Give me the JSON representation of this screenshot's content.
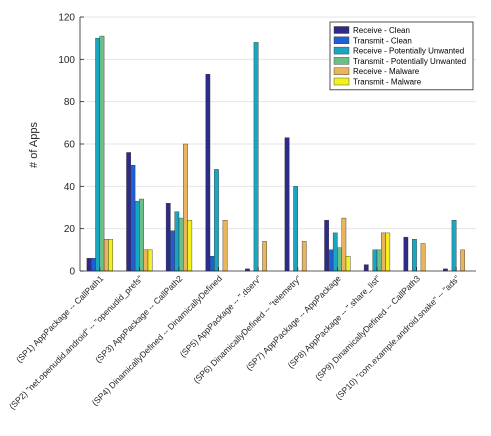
{
  "chart_data": {
    "type": "bar",
    "ylabel": "# of Apps",
    "ylim": [
      0,
      120
    ],
    "yticks": [
      0,
      20,
      40,
      60,
      80,
      100,
      120
    ],
    "grid": true,
    "legend_position": "top-right",
    "categories": [
      "(SP1) AppPackage -- CallPath1",
      "(SP2) \"net.openudid.android\" -- \"openudid_prefs\"",
      "(SP3) AppPackage -- CallPath2",
      "(SP4) DinamicallyDefined -- DinamicallyDefined",
      "(SP5) AppPackage -- \".dserv\"",
      "(SP6) DinamicallyDefined -- \"telemetry\"",
      "(SP7) AppPackage -- AppPackage",
      "(SP8) AppPackage -- \".share_list\"",
      "(SP9) DinamicallyDefined -- CallPath3",
      "(SP10) \"com.example.android.snake\" -- \"ads\""
    ],
    "series": [
      {
        "name": "Receive - Clean",
        "color": "#2e2a8a",
        "values": [
          6,
          56,
          32,
          93,
          1,
          63,
          24,
          3,
          16,
          1
        ]
      },
      {
        "name": "Transmit - Clean",
        "color": "#1f5fd6",
        "values": [
          6,
          50,
          19,
          7,
          0,
          0,
          10,
          0,
          0,
          0
        ]
      },
      {
        "name": "Receive - Potentially Unwanted",
        "color": "#19a6c0",
        "values": [
          110,
          33,
          28,
          48,
          108,
          40,
          18,
          10,
          15,
          24
        ]
      },
      {
        "name": "Transmit - Potentially Unwanted",
        "color": "#6dbf8a",
        "values": [
          111,
          34,
          25,
          0,
          0,
          0,
          11,
          10,
          0,
          0
        ]
      },
      {
        "name": "Receive - Malware",
        "color": "#e9b45c",
        "values": [
          15,
          10,
          60,
          24,
          14,
          14,
          25,
          18,
          13,
          10
        ]
      },
      {
        "name": "Transmit - Malware",
        "color": "#f3f020",
        "values": [
          15,
          10,
          24,
          0,
          0,
          0,
          7,
          18,
          0,
          0
        ]
      }
    ]
  }
}
